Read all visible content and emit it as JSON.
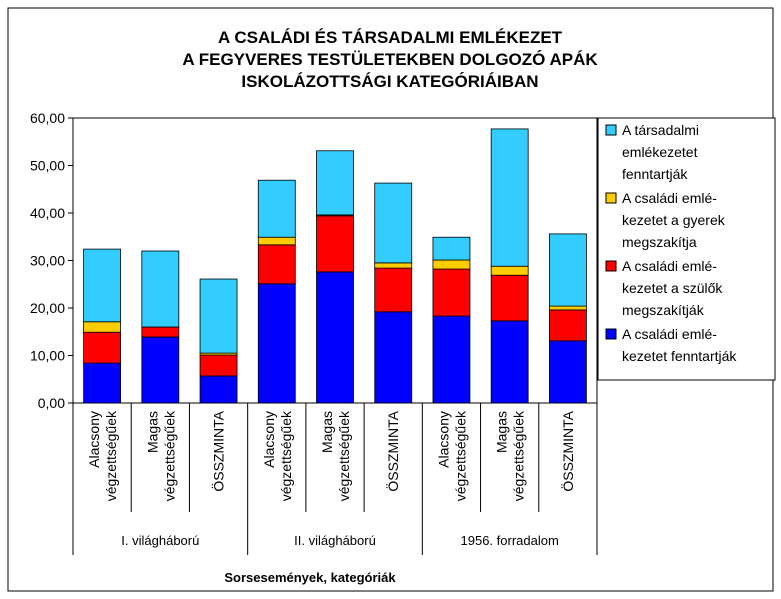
{
  "chart_data": {
    "type": "stacked_bar",
    "title": "A CSALÁDI ÉS TÁRSADALMI EMLÉKEZET\nA FEGYVERES TESTÜLETEKBEN DOLGOZÓ APÁK\nISKOLÁZOTTSÁGI KATEGÓRIÁIBAN",
    "x_label": "Sorsesemények, kategóriák",
    "categories": [
      "Alacsony\nvégzettségűek",
      "Magas\nvégzettségűek",
      "ÖSSZMINTA",
      "Alacsony\nvégzettségűek",
      "Magas\nvégzettségűek",
      "ÖSSZMINTA",
      "Alacsony\nvégzettségűek",
      "Magas\nvégzettségűek",
      "ÖSSZMINTA"
    ],
    "groups": [
      "I. világháború",
      "II. világháború",
      "1956. forradalom"
    ],
    "series": [
      {
        "name": "A családi emlé-\nkezetet fenntartják",
        "color": "#0000ff",
        "values": [
          8.4,
          13.9,
          5.7,
          25.1,
          27.6,
          19.2,
          18.3,
          17.3,
          13.1
        ]
      },
      {
        "name": "A családi emlé-\nkezetet a szülők\nmegszakítják",
        "color": "#ff0000",
        "values": [
          6.5,
          2.1,
          4.4,
          8.2,
          11.8,
          9.2,
          9.9,
          9.6,
          6.5
        ]
      },
      {
        "name": "A családi emlé-\nkezetet a gyerek\nmegszakítja",
        "color": "#ffcc00",
        "values": [
          2.2,
          0,
          0.4,
          1.6,
          0.2,
          1.1,
          1.9,
          1.9,
          0.8
        ]
      },
      {
        "name": "A társadalmi\nemlékezetet\nfenntartják",
        "color": "#33ccff",
        "values": [
          15.3,
          16.0,
          15.6,
          12.0,
          13.5,
          16.8,
          4.8,
          28.9,
          15.2
        ]
      }
    ],
    "ylim": [
      0,
      60
    ],
    "yticks": [
      {
        "value": 0,
        "label": "0,00"
      },
      {
        "value": 10,
        "label": "10,00"
      },
      {
        "value": 20,
        "label": "20,00"
      },
      {
        "value": 30,
        "label": "30,00"
      },
      {
        "value": 40,
        "label": "40,00"
      },
      {
        "value": 50,
        "label": "50,00"
      },
      {
        "value": 60,
        "label": "60,00"
      }
    ],
    "legend": "right"
  }
}
